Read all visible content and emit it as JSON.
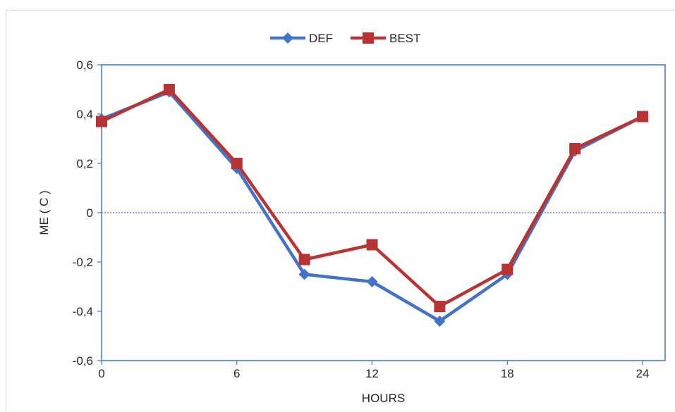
{
  "chart_data": {
    "type": "line",
    "xlabel": "HOURS",
    "ylabel": "ME ( C )",
    "xlim": [
      0,
      25
    ],
    "ylim": [
      -0.6,
      0.6
    ],
    "x_ticks": [
      0,
      6,
      12,
      18,
      24
    ],
    "x_tick_labels": [
      "0",
      "6",
      "12",
      "18",
      "24"
    ],
    "y_ticks": [
      -0.6,
      -0.4,
      -0.2,
      0,
      0.2,
      0.4,
      0.6
    ],
    "y_tick_labels": [
      "-0,6",
      "-0,4",
      "-0,2",
      "0",
      "0,2",
      "0,4",
      "0,6"
    ],
    "zero_line": true,
    "legend_position": "top-center",
    "x": [
      0,
      3,
      6,
      9,
      12,
      15,
      18,
      21,
      24
    ],
    "series": [
      {
        "name": "DEF",
        "color": "#4472c4",
        "marker": "diamond",
        "values": [
          0.38,
          0.49,
          0.18,
          -0.25,
          -0.28,
          -0.44,
          -0.25,
          0.25,
          0.39
        ]
      },
      {
        "name": "BEST",
        "color": "#b83333",
        "marker": "square",
        "values": [
          0.37,
          0.5,
          0.2,
          -0.19,
          -0.13,
          -0.38,
          -0.23,
          0.26,
          0.39
        ]
      }
    ]
  }
}
